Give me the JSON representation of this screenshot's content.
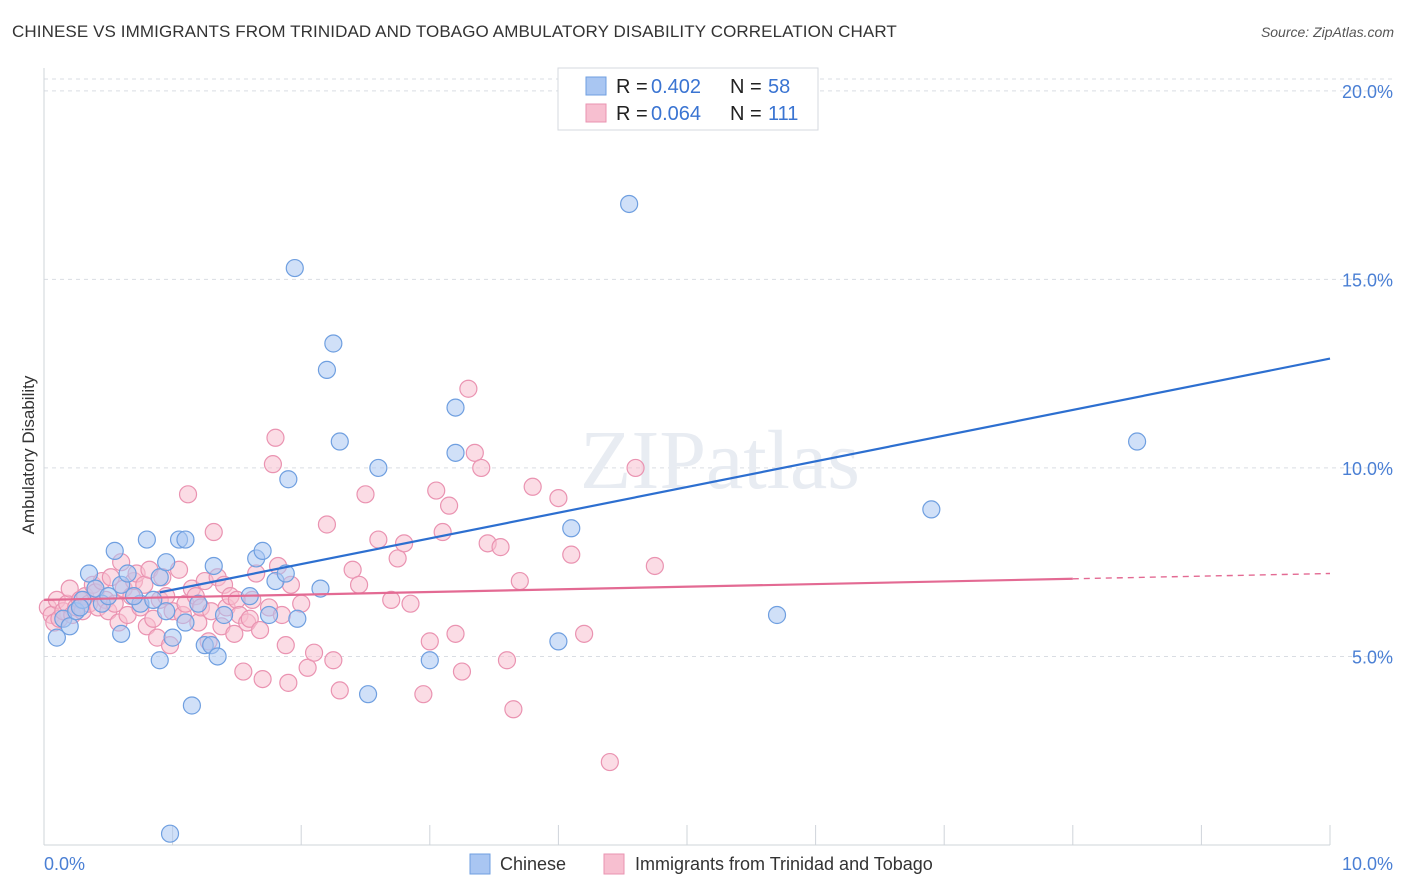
{
  "title": "CHINESE VS IMMIGRANTS FROM TRINIDAD AND TOBAGO AMBULATORY DISABILITY CORRELATION CHART",
  "source": "Source: ZipAtlas.com",
  "watermark": "ZIPatlas",
  "legend_top": {
    "r_label": "R =",
    "n_label": "N =",
    "rows": [
      {
        "r": "0.402",
        "n": "58"
      },
      {
        "r": "0.064",
        "n": "111"
      }
    ]
  },
  "colors": {
    "chinese_fill": "#a9c6f2",
    "chinese_stroke": "#6f9fe0",
    "chinese_line": "#2d6fd0",
    "trinidad_fill": "#f7bfd0",
    "trinidad_stroke": "#ea93b1",
    "trinidad_line": "#e36a93",
    "tick": "#4a7fd4",
    "grid": "#d9dde3"
  },
  "chart_data": {
    "type": "scatter",
    "title": "CHINESE VS IMMIGRANTS FROM TRINIDAD AND TOBAGO AMBULATORY DISABILITY CORRELATION CHART",
    "xlabel": "",
    "ylabel": "Ambulatory Disability",
    "xlim": [
      0,
      10
    ],
    "ylim": [
      0,
      20.5
    ],
    "x_tick_labels": [
      "0.0%",
      "10.0%"
    ],
    "y_ticks": [
      5,
      10,
      15,
      20
    ],
    "y_tick_labels": [
      "5.0%",
      "10.0%",
      "15.0%",
      "20.0%"
    ],
    "grid": true,
    "legend_position": "bottom-center",
    "series": [
      {
        "name": "Chinese",
        "r": 0.402,
        "n": 58,
        "trend": {
          "x": [
            0.9,
            10.0
          ],
          "y": [
            6.7,
            12.9
          ],
          "dash_from": null
        },
        "points": [
          [
            0.1,
            5.5
          ],
          [
            0.15,
            6.0
          ],
          [
            0.2,
            5.8
          ],
          [
            0.25,
            6.2
          ],
          [
            0.3,
            6.5
          ],
          [
            0.35,
            7.2
          ],
          [
            0.4,
            6.8
          ],
          [
            0.45,
            6.4
          ],
          [
            0.5,
            6.6
          ],
          [
            0.55,
            7.8
          ],
          [
            0.6,
            6.9
          ],
          [
            0.65,
            7.2
          ],
          [
            0.6,
            5.6
          ],
          [
            0.75,
            6.4
          ],
          [
            0.8,
            8.1
          ],
          [
            0.85,
            6.5
          ],
          [
            0.9,
            4.9
          ],
          [
            0.9,
            7.1
          ],
          [
            0.95,
            7.5
          ],
          [
            0.95,
            6.2
          ],
          [
            0.98,
            0.3
          ],
          [
            1.0,
            5.5
          ],
          [
            1.05,
            8.1
          ],
          [
            1.1,
            5.9
          ],
          [
            1.1,
            8.1
          ],
          [
            1.15,
            3.7
          ],
          [
            1.2,
            6.4
          ],
          [
            1.25,
            5.3
          ],
          [
            1.3,
            5.3
          ],
          [
            1.35,
            5.0
          ],
          [
            1.4,
            6.1
          ],
          [
            1.32,
            7.4
          ],
          [
            1.6,
            6.6
          ],
          [
            1.65,
            7.6
          ],
          [
            1.7,
            7.8
          ],
          [
            1.75,
            6.1
          ],
          [
            1.8,
            7.0
          ],
          [
            1.88,
            7.2
          ],
          [
            1.9,
            9.7
          ],
          [
            1.95,
            15.3
          ],
          [
            1.97,
            6.0
          ],
          [
            2.15,
            6.8
          ],
          [
            2.25,
            13.3
          ],
          [
            2.3,
            10.7
          ],
          [
            2.2,
            12.6
          ],
          [
            2.52,
            4.0
          ],
          [
            2.6,
            10.0
          ],
          [
            3.0,
            4.9
          ],
          [
            3.2,
            11.6
          ],
          [
            3.2,
            10.4
          ],
          [
            4.0,
            5.4
          ],
          [
            4.1,
            8.4
          ],
          [
            4.55,
            17.0
          ],
          [
            5.7,
            6.1
          ],
          [
            6.9,
            8.9
          ],
          [
            8.5,
            10.7
          ],
          [
            0.28,
            6.3
          ],
          [
            0.7,
            6.6
          ]
        ]
      },
      {
        "name": "Immigrants from Trinidad and Tobago",
        "r": 0.064,
        "n": 111,
        "trend": {
          "x": [
            0.0,
            10.0
          ],
          "y": [
            6.5,
            7.2
          ],
          "dash_from": 8.0
        },
        "points": [
          [
            0.03,
            6.3
          ],
          [
            0.06,
            6.1
          ],
          [
            0.08,
            5.9
          ],
          [
            0.1,
            6.5
          ],
          [
            0.12,
            6.0
          ],
          [
            0.15,
            6.2
          ],
          [
            0.18,
            6.4
          ],
          [
            0.2,
            6.8
          ],
          [
            0.22,
            6.1
          ],
          [
            0.25,
            6.3
          ],
          [
            0.28,
            6.5
          ],
          [
            0.3,
            6.2
          ],
          [
            0.32,
            6.6
          ],
          [
            0.35,
            6.4
          ],
          [
            0.38,
            6.9
          ],
          [
            0.4,
            6.7
          ],
          [
            0.42,
            6.3
          ],
          [
            0.45,
            7.0
          ],
          [
            0.48,
            6.5
          ],
          [
            0.5,
            6.2
          ],
          [
            0.52,
            7.1
          ],
          [
            0.55,
            6.4
          ],
          [
            0.58,
            5.9
          ],
          [
            0.6,
            7.5
          ],
          [
            0.62,
            6.8
          ],
          [
            0.65,
            6.1
          ],
          [
            0.68,
            6.6
          ],
          [
            0.7,
            7.0
          ],
          [
            0.72,
            7.2
          ],
          [
            0.75,
            6.3
          ],
          [
            0.78,
            6.9
          ],
          [
            0.8,
            5.8
          ],
          [
            0.82,
            7.3
          ],
          [
            0.85,
            6.0
          ],
          [
            0.88,
            5.5
          ],
          [
            0.9,
            6.5
          ],
          [
            0.92,
            7.1
          ],
          [
            0.95,
            6.6
          ],
          [
            0.98,
            5.3
          ],
          [
            1.0,
            6.2
          ],
          [
            1.05,
            7.3
          ],
          [
            1.08,
            6.1
          ],
          [
            1.1,
            6.4
          ],
          [
            1.12,
            9.3
          ],
          [
            1.15,
            6.8
          ],
          [
            1.18,
            6.6
          ],
          [
            1.2,
            5.9
          ],
          [
            1.22,
            6.3
          ],
          [
            1.25,
            7.0
          ],
          [
            1.28,
            5.4
          ],
          [
            1.3,
            6.2
          ],
          [
            1.32,
            8.3
          ],
          [
            1.35,
            7.1
          ],
          [
            1.38,
            5.8
          ],
          [
            1.4,
            6.9
          ],
          [
            1.42,
            6.3
          ],
          [
            1.45,
            6.6
          ],
          [
            1.48,
            5.6
          ],
          [
            1.5,
            6.5
          ],
          [
            1.52,
            6.1
          ],
          [
            1.55,
            4.6
          ],
          [
            1.58,
            5.9
          ],
          [
            1.6,
            6.0
          ],
          [
            1.62,
            6.5
          ],
          [
            1.65,
            7.2
          ],
          [
            1.68,
            5.7
          ],
          [
            1.7,
            4.4
          ],
          [
            1.75,
            6.3
          ],
          [
            1.78,
            10.1
          ],
          [
            1.8,
            10.8
          ],
          [
            1.82,
            7.4
          ],
          [
            1.85,
            6.1
          ],
          [
            1.88,
            5.3
          ],
          [
            1.9,
            4.3
          ],
          [
            1.92,
            6.9
          ],
          [
            2.0,
            6.4
          ],
          [
            2.05,
            4.7
          ],
          [
            2.1,
            5.1
          ],
          [
            2.2,
            8.5
          ],
          [
            2.25,
            4.9
          ],
          [
            2.3,
            4.1
          ],
          [
            2.4,
            7.3
          ],
          [
            2.45,
            6.9
          ],
          [
            2.5,
            9.3
          ],
          [
            2.6,
            8.1
          ],
          [
            2.7,
            6.5
          ],
          [
            2.75,
            7.6
          ],
          [
            2.8,
            8.0
          ],
          [
            2.85,
            6.4
          ],
          [
            2.95,
            4.0
          ],
          [
            3.0,
            5.4
          ],
          [
            3.05,
            9.4
          ],
          [
            3.1,
            8.3
          ],
          [
            3.15,
            9.0
          ],
          [
            3.2,
            5.6
          ],
          [
            3.25,
            4.6
          ],
          [
            3.3,
            12.1
          ],
          [
            3.35,
            10.4
          ],
          [
            3.4,
            10.0
          ],
          [
            3.45,
            8.0
          ],
          [
            3.55,
            7.9
          ],
          [
            3.6,
            4.9
          ],
          [
            3.65,
            3.6
          ],
          [
            3.7,
            7.0
          ],
          [
            3.8,
            9.5
          ],
          [
            4.0,
            9.2
          ],
          [
            4.1,
            7.7
          ],
          [
            4.2,
            5.6
          ],
          [
            4.4,
            2.2
          ],
          [
            4.6,
            10.0
          ],
          [
            4.75,
            7.4
          ]
        ]
      }
    ]
  },
  "legend_bottom": [
    "Chinese",
    "Immigrants from Trinidad and Tobago"
  ]
}
